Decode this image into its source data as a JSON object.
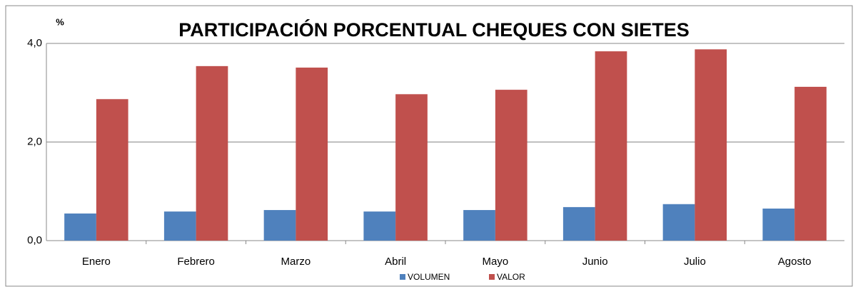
{
  "chart_data": {
    "type": "bar",
    "title": "PARTICIPACIÓN PORCENTUAL CHEQUES CON SIETES",
    "y_label": "%",
    "categories": [
      "Enero",
      "Febrero",
      "Marzo",
      "Abril",
      "Mayo",
      "Junio",
      "Julio",
      "Agosto"
    ],
    "series": [
      {
        "name": "VOLUMEN",
        "color": "#4f81bd",
        "values": [
          0.55,
          0.59,
          0.62,
          0.59,
          0.62,
          0.68,
          0.74,
          0.65
        ]
      },
      {
        "name": "VALOR",
        "color": "#c0504d",
        "values": [
          2.87,
          3.54,
          3.51,
          2.97,
          3.06,
          3.84,
          3.88,
          3.12
        ]
      }
    ],
    "ylim": [
      0,
      4
    ],
    "yticks": [
      {
        "value": 0,
        "label": "0,0"
      },
      {
        "value": 2,
        "label": "2,0"
      },
      {
        "value": 4,
        "label": "4,0"
      }
    ],
    "grid": true,
    "legend": "bottom"
  }
}
